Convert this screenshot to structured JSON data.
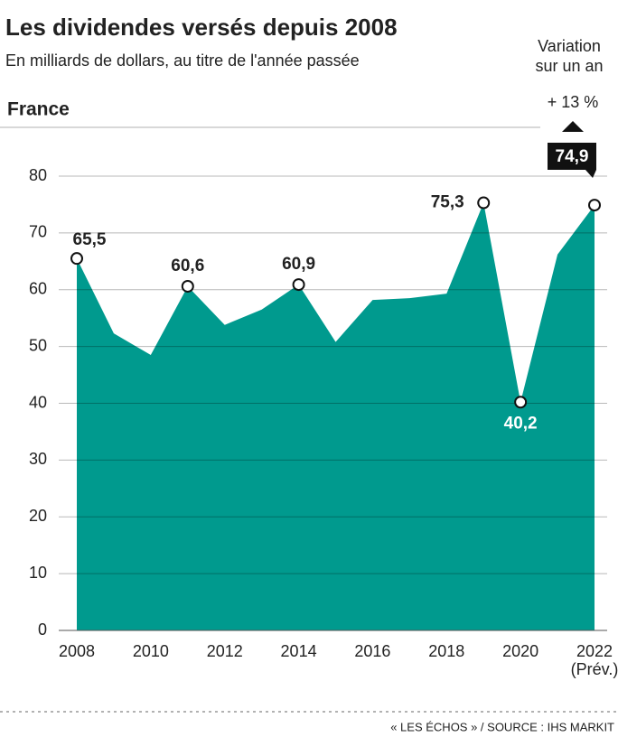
{
  "chart_data": {
    "type": "area",
    "title": "Les dividendes versés depuis 2008",
    "subtitle": "En milliards de dollars, au titre de l'année passée",
    "panel_label": "France",
    "variation_title": [
      "Variation",
      "sur un an"
    ],
    "variation": "+ 13 %",
    "x_note": "(Prév.)",
    "source": "« LES ÉCHOS » / SOURCE : IHS MARKIT",
    "color": "#009a8e",
    "x": [
      2008,
      2009,
      2010,
      2011,
      2012,
      2013,
      2014,
      2015,
      2016,
      2017,
      2018,
      2019,
      2020,
      2021,
      2022
    ],
    "values": [
      65.5,
      52.3,
      48.5,
      60.6,
      53.8,
      56.5,
      60.9,
      50.8,
      58.2,
      58.5,
      59.3,
      75.3,
      40.2,
      66.2,
      74.9
    ],
    "value_labels": [
      "65,5",
      null,
      null,
      "60,6",
      null,
      null,
      "60,9",
      null,
      null,
      null,
      null,
      "75,3",
      "40,2",
      null,
      "74,9"
    ],
    "xlim": [
      2008,
      2022
    ],
    "xticks": [
      2008,
      2010,
      2012,
      2014,
      2016,
      2018,
      2020,
      2022
    ],
    "ylim": [
      0,
      80
    ],
    "yticks": [
      0,
      10,
      20,
      30,
      40,
      50,
      60,
      70,
      80
    ],
    "grid": true
  }
}
